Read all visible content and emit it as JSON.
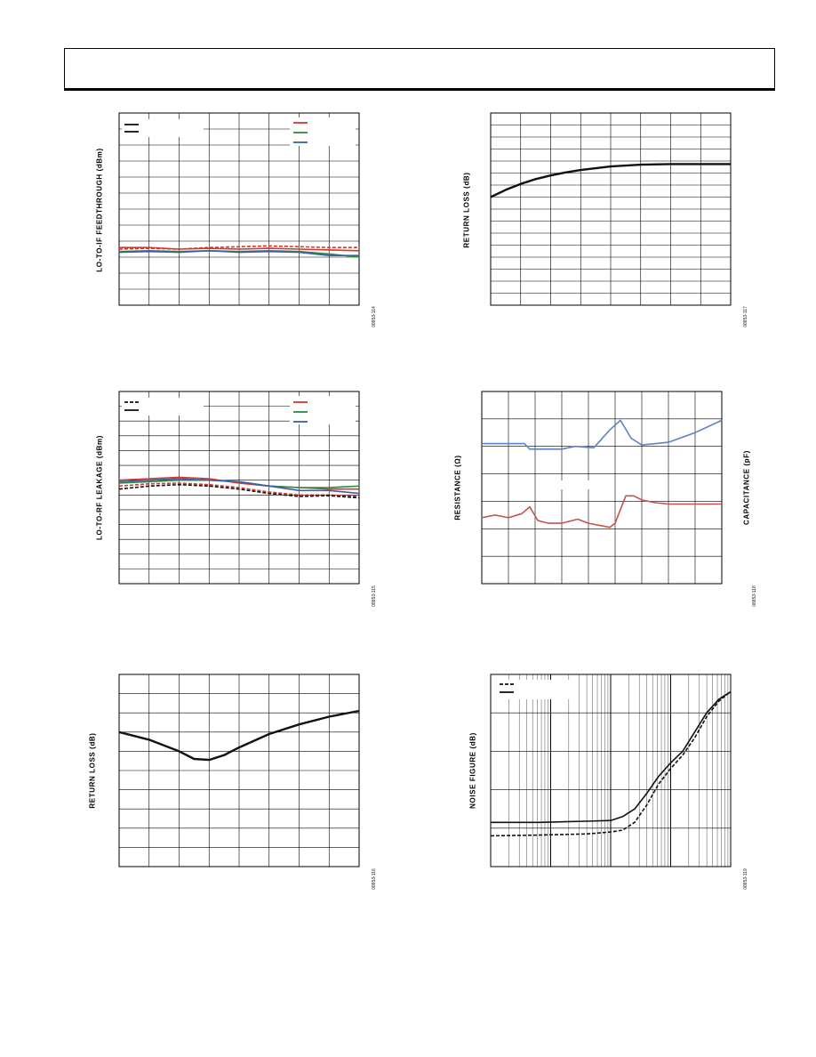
{
  "page": {
    "header_text": ""
  },
  "charts": [
    {
      "id": "c1",
      "y_label": "LO-TO-IF FEEDTHROUGH (dBm)",
      "fig_id": "08853-114"
    },
    {
      "id": "c2",
      "y_label": "RETURN LOSS (dB)",
      "fig_id": "08853-117"
    },
    {
      "id": "c3",
      "y_label": "LO-TO-RF LEAKAGE (dBm)",
      "fig_id": "08853-115"
    },
    {
      "id": "c4",
      "y_label": "RESISTANCE (Ω)",
      "y_label_right": "CAPACITANCE (pF)",
      "fig_id": "08853-118"
    },
    {
      "id": "c5",
      "y_label": "RETURN LOSS (dB)",
      "fig_id": "08853-116"
    },
    {
      "id": "c6",
      "y_label": "NOISE FIGURE (dB)",
      "fig_id": "08853-119"
    }
  ],
  "colors": {
    "red": "#d9362e",
    "green": "#2e8b3a",
    "blue": "#3a5fa8",
    "black": "#111111",
    "steel_blue": "#5b84c4",
    "brick_red": "#c4544a"
  },
  "chart_data": [
    {
      "type": "line",
      "xlim": [
        0,
        8
      ],
      "ylim": [
        0,
        12
      ],
      "grid": true,
      "series": [
        {
          "color": "#d9362e",
          "style": "solid",
          "x": [
            0,
            1,
            2,
            3,
            4,
            5,
            6,
            7,
            8
          ],
          "y": [
            3.6,
            3.6,
            3.5,
            3.55,
            3.5,
            3.55,
            3.5,
            3.45,
            3.4
          ]
        },
        {
          "color": "#d9362e",
          "style": "dashed",
          "x": [
            0,
            1,
            2,
            3,
            4,
            5,
            6,
            7,
            8
          ],
          "y": [
            3.5,
            3.55,
            3.5,
            3.6,
            3.65,
            3.7,
            3.65,
            3.6,
            3.6
          ]
        },
        {
          "color": "#2e8b3a",
          "style": "solid",
          "x": [
            0,
            1,
            2,
            3,
            4,
            5,
            6,
            7,
            8
          ],
          "y": [
            3.35,
            3.4,
            3.35,
            3.4,
            3.35,
            3.4,
            3.35,
            3.2,
            3.0
          ]
        },
        {
          "color": "#3a5fa8",
          "style": "solid",
          "x": [
            0,
            1,
            2,
            3,
            4,
            5,
            6,
            7,
            8
          ],
          "y": [
            3.3,
            3.35,
            3.3,
            3.4,
            3.3,
            3.35,
            3.3,
            3.1,
            3.1
          ]
        }
      ]
    },
    {
      "type": "line",
      "xlim": [
        0,
        8
      ],
      "ylim": [
        0,
        16
      ],
      "grid": true,
      "series": [
        {
          "color": "#111111",
          "style": "solid",
          "x": [
            0,
            0.5,
            1,
            1.5,
            2,
            2.5,
            3,
            3.5,
            4,
            5,
            6,
            7,
            8
          ],
          "y": [
            9,
            9.6,
            10.1,
            10.5,
            10.8,
            11.05,
            11.25,
            11.4,
            11.55,
            11.7,
            11.75,
            11.75,
            11.75
          ]
        }
      ]
    },
    {
      "type": "line",
      "xlim": [
        0,
        8
      ],
      "ylim": [
        0,
        13
      ],
      "grid": true,
      "series": [
        {
          "color": "#d9362e",
          "style": "solid",
          "x": [
            0,
            1,
            2,
            3,
            4,
            5,
            6,
            7,
            8
          ],
          "y": [
            7.0,
            7.1,
            7.2,
            7.1,
            6.8,
            6.6,
            6.5,
            6.4,
            6.4
          ]
        },
        {
          "color": "#2e8b3a",
          "style": "solid",
          "x": [
            0,
            1,
            2,
            3,
            4,
            5,
            6,
            7,
            8
          ],
          "y": [
            6.8,
            6.9,
            7.0,
            7.0,
            6.9,
            6.6,
            6.5,
            6.5,
            6.6
          ]
        },
        {
          "color": "#3a5fa8",
          "style": "solid",
          "x": [
            0,
            1,
            2,
            3,
            4,
            5,
            6,
            7,
            8
          ],
          "y": [
            6.9,
            7.0,
            7.1,
            7.0,
            6.9,
            6.6,
            6.3,
            6.3,
            6.1
          ]
        },
        {
          "color": "#d9362e",
          "style": "dashed",
          "x": [
            0,
            1,
            2,
            3,
            4,
            5,
            6,
            7,
            8
          ],
          "y": [
            6.6,
            6.75,
            6.8,
            6.7,
            6.5,
            6.2,
            6.0,
            6.0,
            5.9
          ]
        },
        {
          "color": "#111111",
          "style": "dashed",
          "x": [
            0,
            1,
            2,
            3,
            4,
            5,
            6,
            7,
            8
          ],
          "y": [
            6.4,
            6.6,
            6.7,
            6.6,
            6.4,
            6.1,
            5.9,
            5.95,
            5.8
          ]
        }
      ]
    },
    {
      "type": "line",
      "xlim": [
        0,
        9
      ],
      "ylim": [
        0,
        7
      ],
      "grid": true,
      "series": [
        {
          "color": "#5b84c4",
          "style": "solid",
          "x": [
            0,
            1,
            1.6,
            1.8,
            2,
            3,
            3.5,
            4.2,
            4.8,
            5.2,
            5.6,
            6,
            7,
            8,
            9
          ],
          "y": [
            5.1,
            5.1,
            5.1,
            4.9,
            4.9,
            4.9,
            5.0,
            4.95,
            5.6,
            5.95,
            5.3,
            5.05,
            5.15,
            5.5,
            5.95
          ]
        },
        {
          "color": "#c4544a",
          "style": "solid",
          "x": [
            0,
            0.5,
            1,
            1.5,
            1.8,
            2.1,
            2.5,
            3,
            3.6,
            4,
            4.8,
            5,
            5.4,
            5.7,
            6,
            6.5,
            7,
            8,
            9
          ],
          "y": [
            2.4,
            2.5,
            2.4,
            2.55,
            2.8,
            2.3,
            2.2,
            2.2,
            2.35,
            2.2,
            2.05,
            2.2,
            3.2,
            3.2,
            3.05,
            2.95,
            2.9,
            2.9,
            2.9
          ]
        }
      ]
    },
    {
      "type": "line",
      "xlim": [
        0,
        8
      ],
      "ylim": [
        0,
        10
      ],
      "grid": true,
      "series": [
        {
          "color": "#111111",
          "style": "solid",
          "x": [
            0,
            1,
            2,
            2.5,
            3,
            3.5,
            4,
            5,
            6,
            7,
            8
          ],
          "y": [
            7.0,
            6.6,
            6.0,
            5.6,
            5.55,
            5.8,
            6.2,
            6.9,
            7.4,
            7.8,
            8.1
          ]
        }
      ]
    },
    {
      "type": "line",
      "xlim": [
        0,
        1
      ],
      "ylim": [
        0,
        5
      ],
      "grid": true,
      "x_scale": "log",
      "series": [
        {
          "color": "#111111",
          "style": "solid",
          "x": [
            0,
            0.2,
            0.4,
            0.5,
            0.55,
            0.6,
            0.65,
            0.7,
            0.75,
            0.8,
            0.85,
            0.9,
            0.95,
            1.0
          ],
          "y": [
            1.15,
            1.15,
            1.18,
            1.2,
            1.3,
            1.5,
            1.9,
            2.35,
            2.7,
            3.0,
            3.5,
            4.0,
            4.35,
            4.55
          ]
        },
        {
          "color": "#111111",
          "style": "dashed",
          "x": [
            0,
            0.2,
            0.4,
            0.5,
            0.55,
            0.6,
            0.65,
            0.7,
            0.75,
            0.8,
            0.85,
            0.9,
            0.95,
            1.0
          ],
          "y": [
            0.8,
            0.82,
            0.85,
            0.9,
            0.95,
            1.15,
            1.6,
            2.15,
            2.55,
            2.9,
            3.35,
            3.9,
            4.3,
            4.55
          ]
        }
      ]
    }
  ]
}
